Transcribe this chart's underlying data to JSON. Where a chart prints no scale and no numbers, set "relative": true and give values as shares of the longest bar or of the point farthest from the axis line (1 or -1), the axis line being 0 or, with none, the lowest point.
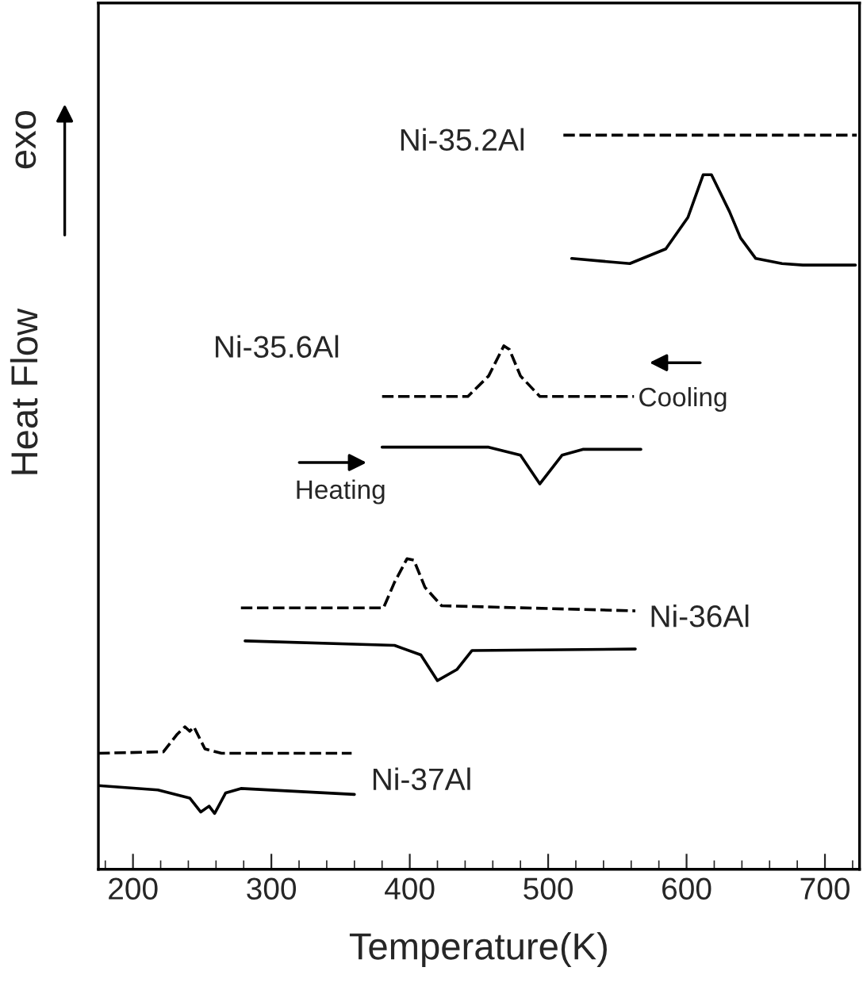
{
  "chart_data": {
    "type": "line",
    "relative": true,
    "xlabel": "Temperature(K)",
    "ylabel": "Heat Flow",
    "xlim": [
      175,
      725
    ],
    "xticks": [
      200,
      300,
      400,
      500,
      600,
      700
    ],
    "grid": false,
    "marker": "none",
    "annotations": [
      "exo",
      "Cooling",
      "Heating",
      "Ni-35.2Al",
      "Ni-35.6Al",
      "Ni-36Al",
      "Ni-37Al"
    ],
    "series": [
      {
        "color": "#000000",
        "line_style": "dashed",
        "x": [
          511,
          560,
          620,
          680,
          723
        ],
        "values": [
          1.0,
          1.0,
          1.0,
          1.0,
          1.0
        ]
      },
      {
        "color": "#000000",
        "line_style": "solid",
        "x": [
          517,
          559,
          585,
          601,
          612,
          618,
          631,
          639,
          650,
          669,
          684,
          722
        ],
        "values": [
          0.832,
          0.825,
          0.845,
          0.888,
          0.946,
          0.946,
          0.896,
          0.86,
          0.832,
          0.825,
          0.823,
          0.823
        ]
      },
      {
        "color": "#000000",
        "line_style": "dashed",
        "x": [
          380,
          442,
          457,
          468,
          472,
          480,
          494,
          562
        ],
        "values": [
          0.644,
          0.644,
          0.672,
          0.713,
          0.708,
          0.672,
          0.644,
          0.644
        ]
      },
      {
        "color": "#000000",
        "line_style": "solid",
        "x": [
          380,
          457,
          480,
          494,
          510,
          525,
          567
        ],
        "values": [
          0.575,
          0.575,
          0.564,
          0.525,
          0.564,
          0.572,
          0.572
        ]
      },
      {
        "color": "#000000",
        "line_style": "dashed",
        "x": [
          278,
          381,
          389,
          398,
          403,
          411,
          423,
          563
        ],
        "values": [
          0.356,
          0.356,
          0.391,
          0.423,
          0.421,
          0.384,
          0.359,
          0.352
        ]
      },
      {
        "color": "#000000",
        "line_style": "solid",
        "x": [
          281,
          389,
          408,
          420,
          434,
          445,
          563
        ],
        "values": [
          0.311,
          0.305,
          0.292,
          0.257,
          0.272,
          0.298,
          0.3
        ]
      },
      {
        "color": "#000000",
        "line_style": "dashed",
        "x": [
          175,
          222,
          232,
          237.5,
          241,
          244,
          252,
          264,
          358
        ],
        "values": [
          0.158,
          0.16,
          0.184,
          0.194,
          0.188,
          0.194,
          0.164,
          0.158,
          0.158
        ]
      },
      {
        "color": "#000000",
        "line_style": "solid",
        "x": [
          175,
          218,
          241,
          249,
          255,
          259,
          267,
          278,
          360
        ],
        "values": [
          0.114,
          0.108,
          0.097,
          0.078,
          0.086,
          0.076,
          0.104,
          0.11,
          0.102
        ]
      }
    ]
  }
}
